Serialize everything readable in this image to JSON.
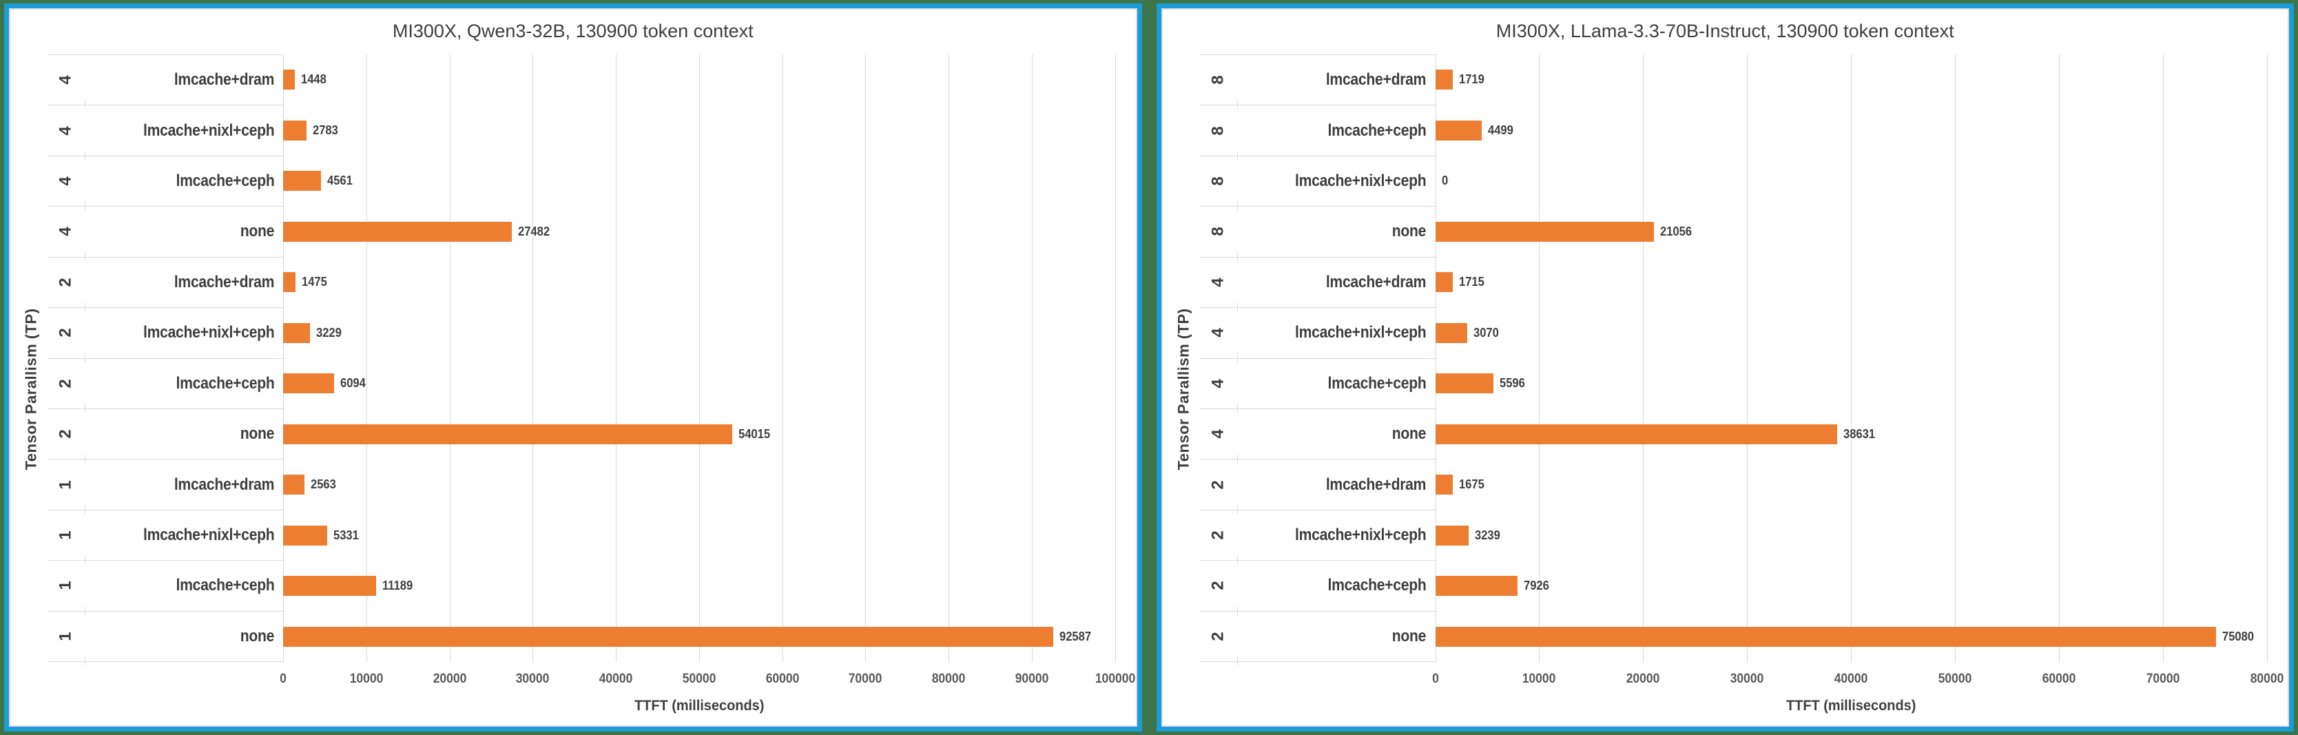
{
  "page": {
    "background_color": "#3E744A",
    "panel_border_color": "#1C9CD7",
    "bar_color": "#ED7D31",
    "grid_color": "#D9D9D9",
    "text_color": "#3E3E3E",
    "tick_color": "#595959"
  },
  "chart_data": [
    {
      "type": "bar",
      "orientation": "horizontal",
      "title": "MI300X, Qwen3-32B, 130900 token context",
      "xlabel": "TTFT (milliseconds)",
      "ylabel": "Tensor Parallism (TP)",
      "xlim": [
        0,
        100000
      ],
      "x_ticks": [
        0,
        10000,
        20000,
        30000,
        40000,
        50000,
        60000,
        70000,
        80000,
        90000,
        100000
      ],
      "grid": true,
      "legend": false,
      "bar_color": "#ED7D31",
      "rows": [
        {
          "tp": "4",
          "config": "lmcache+dram",
          "value": 1448
        },
        {
          "tp": "4",
          "config": "lmcache+nixl+ceph",
          "value": 2783
        },
        {
          "tp": "4",
          "config": "lmcache+ceph",
          "value": 4561
        },
        {
          "tp": "4",
          "config": "none",
          "value": 27482
        },
        {
          "tp": "2",
          "config": "lmcache+dram",
          "value": 1475
        },
        {
          "tp": "2",
          "config": "lmcache+nixl+ceph",
          "value": 3229
        },
        {
          "tp": "2",
          "config": "lmcache+ceph",
          "value": 6094
        },
        {
          "tp": "2",
          "config": "none",
          "value": 54015
        },
        {
          "tp": "1",
          "config": "lmcache+dram",
          "value": 2563
        },
        {
          "tp": "1",
          "config": "lmcache+nixl+ceph",
          "value": 5331
        },
        {
          "tp": "1",
          "config": "lmcache+ceph",
          "value": 11189
        },
        {
          "tp": "1",
          "config": "none",
          "value": 92587
        }
      ]
    },
    {
      "type": "bar",
      "orientation": "horizontal",
      "title": "MI300X, LLama-3.3-70B-Instruct, 130900 token context",
      "xlabel": "TTFT (milliseconds)",
      "ylabel": "Tensor Parallism (TP)",
      "xlim": [
        0,
        80000
      ],
      "x_ticks": [
        0,
        10000,
        20000,
        30000,
        40000,
        50000,
        60000,
        70000,
        80000
      ],
      "grid": true,
      "legend": false,
      "bar_color": "#ED7D31",
      "rows": [
        {
          "tp": "8",
          "config": "lmcache+dram",
          "value": 1719
        },
        {
          "tp": "8",
          "config": "lmcache+ceph",
          "value": 4499
        },
        {
          "tp": "8",
          "config": "lmcache+nixl+ceph",
          "value": 0
        },
        {
          "tp": "8",
          "config": "none",
          "value": 21056
        },
        {
          "tp": "4",
          "config": "lmcache+dram",
          "value": 1715
        },
        {
          "tp": "4",
          "config": "lmcache+nixl+ceph",
          "value": 3070
        },
        {
          "tp": "4",
          "config": "lmcache+ceph",
          "value": 5596
        },
        {
          "tp": "4",
          "config": "none",
          "value": 38631
        },
        {
          "tp": "2",
          "config": "lmcache+dram",
          "value": 1675
        },
        {
          "tp": "2",
          "config": "lmcache+nixl+ceph",
          "value": 3239
        },
        {
          "tp": "2",
          "config": "lmcache+ceph",
          "value": 7926
        },
        {
          "tp": "2",
          "config": "none",
          "value": 75080
        }
      ]
    }
  ]
}
